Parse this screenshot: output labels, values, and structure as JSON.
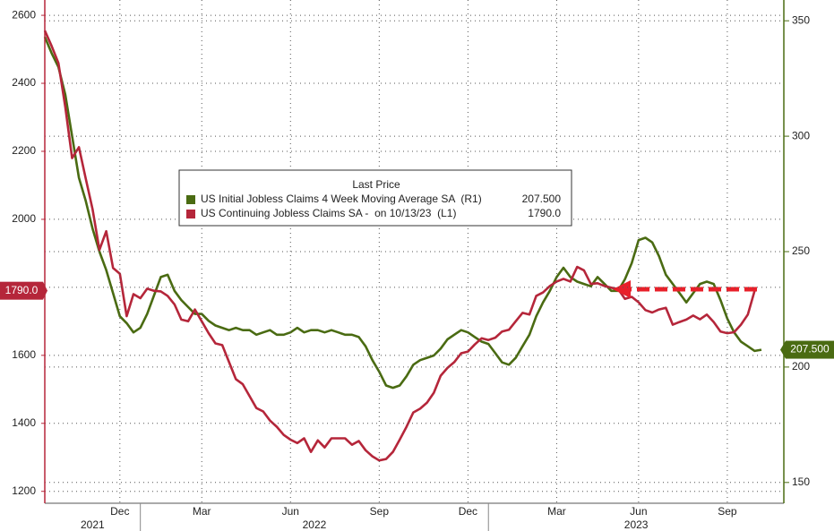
{
  "chart_data": {
    "type": "line",
    "legend_title": "Last Price",
    "categories": [
      null,
      null,
      null,
      null,
      null,
      null,
      null,
      null,
      null,
      null,
      null,
      "Dec",
      null,
      null,
      null,
      null,
      null,
      null,
      null,
      null,
      null,
      null,
      null,
      "Mar",
      null,
      null,
      null,
      null,
      null,
      null,
      null,
      null,
      null,
      null,
      null,
      null,
      "Jun",
      null,
      null,
      null,
      null,
      null,
      null,
      null,
      null,
      null,
      null,
      null,
      null,
      "Sep",
      null,
      null,
      null,
      null,
      null,
      null,
      null,
      null,
      null,
      null,
      null,
      null,
      "Dec",
      null,
      null,
      null,
      null,
      null,
      null,
      null,
      null,
      null,
      null,
      null,
      null,
      "Mar",
      null,
      null,
      null,
      null,
      null,
      null,
      null,
      null,
      null,
      null,
      null,
      "Jun",
      null,
      null,
      null,
      null,
      null,
      null,
      null,
      null,
      null,
      null,
      null,
      null,
      "Sep",
      null,
      null,
      null,
      null,
      null
    ],
    "year_labels": [
      "2021",
      "2022",
      "2023"
    ],
    "series": [
      {
        "name": "US Initial Jobless Claims 4 Week Moving Average SA  (R1)",
        "color": "#4a6b12",
        "axis": "y2",
        "last_label": "207.500",
        "values": [
          343,
          336,
          330,
          318,
          300,
          282,
          272,
          260,
          250,
          242,
          232,
          222,
          219,
          215,
          217,
          223,
          231,
          239,
          240,
          233,
          229,
          226,
          223,
          223,
          220,
          218,
          217,
          216,
          217,
          216,
          216,
          214,
          215,
          216,
          214,
          214,
          215,
          217,
          215,
          216,
          216,
          215,
          216,
          215,
          214,
          214,
          213,
          209,
          203,
          198,
          192,
          191,
          192,
          196,
          201,
          203,
          204,
          205,
          208,
          212,
          214,
          216,
          215,
          213,
          211,
          210,
          206,
          202,
          201,
          204,
          209,
          214,
          222,
          228,
          233,
          239,
          243,
          239,
          237,
          236,
          235,
          239,
          236,
          233,
          233,
          238,
          245,
          255,
          256,
          254,
          248,
          240,
          236,
          232,
          228,
          232,
          236,
          237,
          236,
          229,
          221,
          215,
          211,
          209,
          207,
          207.5
        ]
      },
      {
        "name": "US Continuing Jobless Claims SA -  on 10/13/23  (L1)",
        "color": "#b5263a",
        "axis": "y",
        "last_label": "1790.0",
        "values": [
          2555,
          2510,
          2460,
          2330,
          2180,
          2212,
          2120,
          2030,
          1910,
          1965,
          1857,
          1840,
          1715,
          1780,
          1768,
          1796,
          1790,
          1788,
          1775,
          1750,
          1705,
          1700,
          1735,
          1700,
          1665,
          1635,
          1630,
          1580,
          1530,
          1515,
          1480,
          1445,
          1435,
          1408,
          1390,
          1366,
          1352,
          1342,
          1356,
          1316,
          1350,
          1329,
          1356,
          1356,
          1356,
          1337,
          1348,
          1321,
          1303,
          1291,
          1295,
          1316,
          1352,
          1390,
          1432,
          1443,
          1461,
          1490,
          1540,
          1563,
          1580,
          1606,
          1611,
          1632,
          1650,
          1645,
          1652,
          1670,
          1675,
          1700,
          1725,
          1720,
          1775,
          1785,
          1804,
          1817,
          1825,
          1817,
          1860,
          1850,
          1810,
          1812,
          1804,
          1799,
          1795,
          1766,
          1772,
          1756,
          1733,
          1726,
          1735,
          1740,
          1690,
          1698,
          1705,
          1717,
          1706,
          1720,
          1698,
          1670,
          1665,
          1668,
          1690,
          1720,
          1790,
          null
        ]
      }
    ],
    "ylim": [
      1165,
      2645
    ],
    "yticks": [
      1200,
      1400,
      1600,
      1800,
      2000,
      2200,
      2400,
      2600
    ],
    "y2lim": [
      141,
      359
    ],
    "y2ticks": [
      150,
      200,
      250,
      300,
      350
    ],
    "grid": true
  }
}
